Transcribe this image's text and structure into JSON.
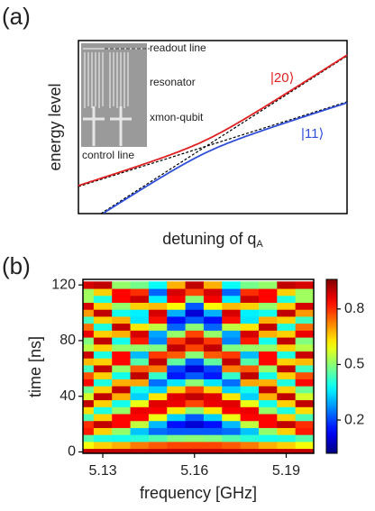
{
  "panel_a": {
    "label": "(a)",
    "y_label": "energy level",
    "x_label": "detuning of q",
    "x_label_sub": "A",
    "state_upper": "|20⟩",
    "state_lower": "|11⟩",
    "inset": {
      "readout": "readout line",
      "resonator": "resonator",
      "qubit": "xmon-qubit",
      "control": "control line"
    }
  },
  "chart_data": {
    "type": "heatmap",
    "panel_label": "(b)",
    "x_label": "frequency [GHz]",
    "y_label": "time [ns]",
    "colormap": "jet",
    "x": [
      5.124,
      5.13,
      5.136,
      5.142,
      5.148,
      5.154,
      5.16,
      5.166,
      5.172,
      5.178,
      5.184,
      5.19,
      5.196
    ],
    "y": [
      0,
      5,
      10,
      15,
      20,
      25,
      30,
      35,
      40,
      45,
      50,
      55,
      60,
      65,
      70,
      75,
      80,
      85,
      90,
      95,
      100,
      105,
      110,
      115,
      120
    ],
    "z": [
      [
        0.9,
        0.9,
        0.9,
        0.9,
        0.9,
        0.9,
        0.9,
        0.9,
        0.9,
        0.9,
        0.9,
        0.9,
        0.9
      ],
      [
        0.6,
        0.65,
        0.68,
        0.73,
        0.76,
        0.78,
        0.78,
        0.78,
        0.76,
        0.73,
        0.68,
        0.65,
        0.6
      ],
      [
        0.45,
        0.4,
        0.39,
        0.41,
        0.45,
        0.49,
        0.5,
        0.49,
        0.45,
        0.41,
        0.39,
        0.4,
        0.45
      ],
      [
        0.82,
        0.65,
        0.51,
        0.32,
        0.24,
        0.22,
        0.22,
        0.22,
        0.24,
        0.32,
        0.51,
        0.65,
        0.82
      ],
      [
        0.8,
        0.9,
        0.84,
        0.55,
        0.31,
        0.15,
        0.1,
        0.15,
        0.31,
        0.55,
        0.84,
        0.9,
        0.8
      ],
      [
        0.44,
        0.65,
        0.84,
        0.84,
        0.59,
        0.33,
        0.22,
        0.33,
        0.59,
        0.84,
        0.84,
        0.65,
        0.44
      ],
      [
        0.64,
        0.4,
        0.51,
        0.86,
        0.85,
        0.63,
        0.5,
        0.63,
        0.85,
        0.86,
        0.51,
        0.4,
        0.64
      ],
      [
        0.9,
        0.65,
        0.39,
        0.59,
        0.87,
        0.86,
        0.78,
        0.86,
        0.87,
        0.59,
        0.39,
        0.65,
        0.9
      ],
      [
        0.57,
        0.9,
        0.68,
        0.33,
        0.63,
        0.87,
        0.9,
        0.87,
        0.63,
        0.33,
        0.68,
        0.9,
        0.57
      ],
      [
        0.47,
        0.65,
        0.9,
        0.39,
        0.33,
        0.65,
        0.78,
        0.65,
        0.33,
        0.39,
        0.9,
        0.65,
        0.47
      ],
      [
        0.84,
        0.4,
        0.68,
        0.69,
        0.24,
        0.35,
        0.5,
        0.35,
        0.24,
        0.69,
        0.68,
        0.4,
        0.84
      ],
      [
        0.77,
        0.65,
        0.39,
        0.9,
        0.42,
        0.16,
        0.22,
        0.16,
        0.42,
        0.9,
        0.39,
        0.65,
        0.77
      ],
      [
        0.43,
        0.9,
        0.51,
        0.76,
        0.73,
        0.2,
        0.1,
        0.2,
        0.73,
        0.76,
        0.51,
        0.9,
        0.43
      ],
      [
        0.67,
        0.65,
        0.84,
        0.45,
        0.9,
        0.46,
        0.22,
        0.46,
        0.9,
        0.45,
        0.84,
        0.65,
        0.67
      ],
      [
        0.89,
        0.4,
        0.84,
        0.31,
        0.79,
        0.76,
        0.5,
        0.76,
        0.79,
        0.31,
        0.84,
        0.4,
        0.89
      ],
      [
        0.54,
        0.65,
        0.51,
        0.51,
        0.49,
        0.9,
        0.78,
        0.9,
        0.49,
        0.51,
        0.51,
        0.65,
        0.54
      ],
      [
        0.49,
        0.9,
        0.39,
        0.82,
        0.26,
        0.79,
        0.9,
        0.79,
        0.26,
        0.82,
        0.39,
        0.9,
        0.49
      ],
      [
        0.86,
        0.65,
        0.68,
        0.88,
        0.29,
        0.51,
        0.78,
        0.51,
        0.29,
        0.88,
        0.68,
        0.65,
        0.86
      ],
      [
        0.74,
        0.4,
        0.9,
        0.63,
        0.55,
        0.23,
        0.5,
        0.23,
        0.55,
        0.63,
        0.9,
        0.4,
        0.74
      ],
      [
        0.43,
        0.65,
        0.68,
        0.35,
        0.83,
        0.15,
        0.22,
        0.15,
        0.83,
        0.35,
        0.68,
        0.65,
        0.43
      ],
      [
        0.7,
        0.9,
        0.39,
        0.36,
        0.88,
        0.3,
        0.1,
        0.3,
        0.88,
        0.36,
        0.39,
        0.9,
        0.7
      ],
      [
        0.88,
        0.65,
        0.51,
        0.65,
        0.67,
        0.61,
        0.22,
        0.61,
        0.67,
        0.65,
        0.51,
        0.65,
        0.88
      ],
      [
        0.52,
        0.4,
        0.84,
        0.89,
        0.36,
        0.85,
        0.5,
        0.85,
        0.36,
        0.89,
        0.84,
        0.4,
        0.52
      ],
      [
        0.52,
        0.65,
        0.84,
        0.8,
        0.23,
        0.88,
        0.78,
        0.88,
        0.23,
        0.8,
        0.84,
        0.65,
        0.52
      ],
      [
        0.88,
        0.9,
        0.51,
        0.48,
        0.38,
        0.68,
        0.9,
        0.68,
        0.38,
        0.48,
        0.51,
        0.9,
        0.88
      ]
    ],
    "xlim": [
      5.1235,
      5.199
    ],
    "ylim": [
      -1,
      124
    ],
    "xticks": [
      5.13,
      5.16,
      5.19
    ],
    "yticks": [
      0,
      40,
      80,
      120
    ],
    "clim": [
      0.02,
      0.96
    ],
    "cticks": [
      0.2,
      0.5,
      0.8
    ]
  }
}
